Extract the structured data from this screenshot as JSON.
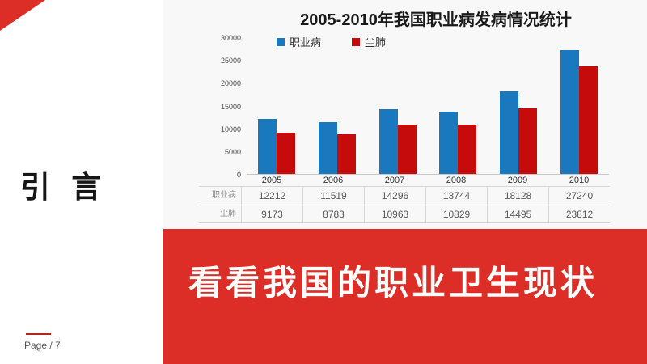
{
  "slide": {
    "section_title": "引 言",
    "banner_text": "看看我国的职业卫生现状",
    "page_label": "Page / 7"
  },
  "colors": {
    "accent_red": "#dc2d26",
    "footer_rule_red": "#b3261e",
    "bar_blue": "#1a79be",
    "bar_red": "#c60b0b",
    "panel_bg": "#f8f8f8"
  },
  "chart_data": {
    "type": "bar",
    "title": "2005-2010年我国职业病发病情况统计",
    "categories": [
      "2005",
      "2006",
      "2007",
      "2008",
      "2009",
      "2010"
    ],
    "series": [
      {
        "name": "职业病",
        "color": "#1a79be",
        "values": [
          12212,
          11519,
          14296,
          13744,
          18128,
          27240
        ]
      },
      {
        "name": "尘肺",
        "color": "#c60b0b",
        "values": [
          9173,
          8783,
          10963,
          10829,
          14495,
          23812
        ]
      }
    ],
    "ylim": [
      0,
      30000
    ],
    "y_ticks": [
      0,
      5000,
      10000,
      15000,
      20000,
      25000,
      30000
    ],
    "grid": false,
    "legend_position": "top",
    "data_table_shown": true
  }
}
